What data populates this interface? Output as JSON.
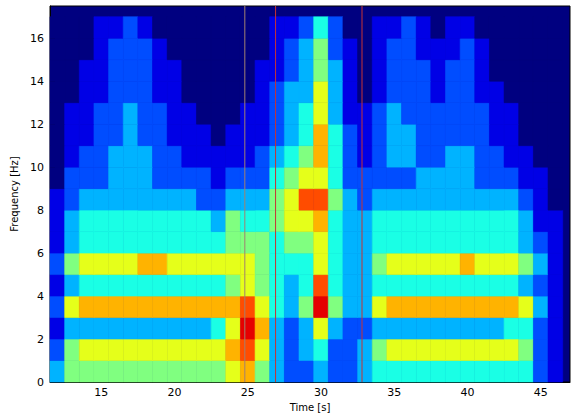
{
  "chart_data": {
    "type": "heatmap",
    "x_label": "Time [s]",
    "y_label": "Frequency [Hz]",
    "xlim": [
      11.5,
      47
    ],
    "ylim": [
      0,
      17.5
    ],
    "xticks": [
      15,
      20,
      25,
      30,
      35,
      40,
      45
    ],
    "yticks": [
      0,
      2,
      4,
      6,
      8,
      10,
      12,
      14,
      16
    ],
    "x": [
      12,
      13,
      14,
      15,
      16,
      17,
      18,
      19,
      20,
      21,
      22,
      23,
      24,
      25,
      26,
      27,
      28,
      29,
      30,
      31,
      32,
      33,
      34,
      35,
      36,
      37,
      38,
      39,
      40,
      41,
      42,
      43,
      44,
      45,
      46
    ],
    "y": [
      0.5,
      1.5,
      2.5,
      3.5,
      4.5,
      5.5,
      6.5,
      7.5,
      8.5,
      9.5,
      10.5,
      11.5,
      12.5,
      13.5,
      14.5,
      15.5,
      16.5
    ],
    "color_range": [
      0,
      10
    ],
    "z": [
      [
        3,
        5,
        5,
        5,
        5,
        5,
        5,
        5,
        5,
        5,
        5,
        5,
        6,
        7,
        5,
        3,
        2,
        2,
        3,
        2,
        2,
        3,
        4,
        4,
        4,
        4,
        4,
        4,
        4,
        4,
        4,
        4,
        4,
        2,
        1
      ],
      [
        2,
        5,
        6,
        6,
        6,
        6,
        6,
        6,
        6,
        6,
        6,
        6,
        7,
        8,
        6,
        3,
        2,
        3,
        4,
        2,
        2,
        3,
        5,
        6,
        6,
        6,
        6,
        6,
        6,
        6,
        6,
        6,
        5,
        2,
        1
      ],
      [
        1,
        3,
        3,
        3,
        3,
        3,
        3,
        3,
        3,
        3,
        3,
        4,
        6,
        9,
        7,
        3,
        2,
        3,
        6,
        3,
        2,
        2,
        3,
        3,
        3,
        3,
        3,
        3,
        3,
        3,
        3,
        4,
        4,
        2,
        1
      ],
      [
        2,
        6,
        7,
        7,
        7,
        7,
        7,
        7,
        7,
        7,
        7,
        7,
        7,
        8,
        6,
        4,
        3,
        5,
        9,
        5,
        3,
        3,
        6,
        7,
        7,
        7,
        7,
        7,
        7,
        7,
        7,
        7,
        6,
        3,
        1
      ],
      [
        1,
        3,
        4,
        4,
        4,
        4,
        4,
        4,
        4,
        4,
        4,
        4,
        5,
        6,
        5,
        4,
        3,
        4,
        8,
        4,
        3,
        3,
        4,
        4,
        4,
        4,
        4,
        4,
        4,
        4,
        4,
        4,
        3,
        2,
        1
      ],
      [
        2,
        5,
        6,
        6,
        6,
        6,
        7,
        7,
        6,
        6,
        6,
        6,
        6,
        6,
        5,
        4,
        4,
        4,
        6,
        4,
        3,
        3,
        5,
        6,
        6,
        6,
        6,
        6,
        7,
        6,
        6,
        6,
        5,
        3,
        1
      ],
      [
        1,
        3,
        4,
        4,
        4,
        4,
        4,
        4,
        4,
        4,
        4,
        4,
        5,
        5,
        5,
        4,
        5,
        5,
        6,
        4,
        3,
        3,
        4,
        4,
        4,
        4,
        4,
        4,
        4,
        4,
        4,
        4,
        3,
        2,
        1
      ],
      [
        1,
        3,
        4,
        4,
        4,
        4,
        4,
        4,
        4,
        4,
        4,
        3,
        5,
        4,
        4,
        5,
        6,
        6,
        7,
        4,
        3,
        3,
        4,
        4,
        4,
        4,
        4,
        4,
        4,
        4,
        4,
        4,
        3,
        1,
        1
      ],
      [
        1,
        2,
        3,
        3,
        3,
        3,
        3,
        3,
        3,
        3,
        2,
        2,
        3,
        3,
        3,
        5,
        6,
        8,
        8,
        5,
        3,
        2,
        3,
        3,
        3,
        3,
        3,
        3,
        3,
        3,
        3,
        3,
        2,
        1,
        0
      ],
      [
        0,
        2,
        2,
        2,
        3,
        3,
        3,
        2,
        2,
        2,
        2,
        1,
        2,
        2,
        2,
        4,
        5,
        6,
        6,
        4,
        2,
        2,
        2,
        2,
        2,
        3,
        3,
        3,
        3,
        2,
        2,
        2,
        1,
        1,
        0
      ],
      [
        0,
        1,
        2,
        2,
        3,
        3,
        3,
        2,
        2,
        1,
        1,
        1,
        1,
        1,
        2,
        3,
        4,
        5,
        7,
        4,
        2,
        1,
        2,
        3,
        3,
        2,
        2,
        3,
        3,
        2,
        2,
        1,
        1,
        0,
        0
      ],
      [
        0,
        1,
        1,
        2,
        2,
        3,
        2,
        2,
        1,
        1,
        1,
        0,
        1,
        1,
        1,
        2,
        3,
        4,
        7,
        4,
        2,
        1,
        2,
        3,
        3,
        2,
        2,
        2,
        2,
        2,
        1,
        1,
        0,
        0,
        0
      ],
      [
        0,
        1,
        1,
        2,
        2,
        3,
        2,
        2,
        1,
        1,
        0,
        0,
        0,
        1,
        1,
        2,
        3,
        4,
        6,
        3,
        1,
        1,
        2,
        3,
        2,
        2,
        2,
        2,
        2,
        2,
        1,
        1,
        0,
        0,
        0
      ],
      [
        0,
        0,
        1,
        1,
        2,
        2,
        2,
        1,
        1,
        0,
        0,
        0,
        0,
        0,
        1,
        2,
        3,
        3,
        6,
        3,
        1,
        0,
        1,
        2,
        2,
        2,
        1,
        2,
        2,
        1,
        1,
        0,
        0,
        0,
        0
      ],
      [
        0,
        0,
        1,
        1,
        2,
        2,
        2,
        1,
        1,
        0,
        0,
        0,
        0,
        0,
        1,
        1,
        2,
        3,
        5,
        3,
        1,
        0,
        1,
        2,
        2,
        2,
        1,
        2,
        2,
        1,
        0,
        0,
        0,
        0,
        0
      ],
      [
        0,
        0,
        0,
        1,
        2,
        2,
        2,
        1,
        0,
        0,
        0,
        0,
        0,
        0,
        0,
        1,
        2,
        3,
        5,
        2,
        1,
        0,
        1,
        2,
        2,
        1,
        1,
        1,
        2,
        1,
        0,
        0,
        0,
        0,
        0
      ],
      [
        0,
        0,
        0,
        1,
        1,
        2,
        1,
        0,
        0,
        0,
        0,
        0,
        0,
        0,
        0,
        1,
        1,
        2,
        4,
        2,
        0,
        0,
        1,
        1,
        2,
        1,
        0,
        1,
        1,
        0,
        0,
        0,
        0,
        0,
        0
      ]
    ],
    "vlines": {
      "x": [
        24.8,
        26.9,
        32.8
      ],
      "colors": [
        "#a08070",
        "#c83232",
        "#c83232"
      ]
    }
  }
}
